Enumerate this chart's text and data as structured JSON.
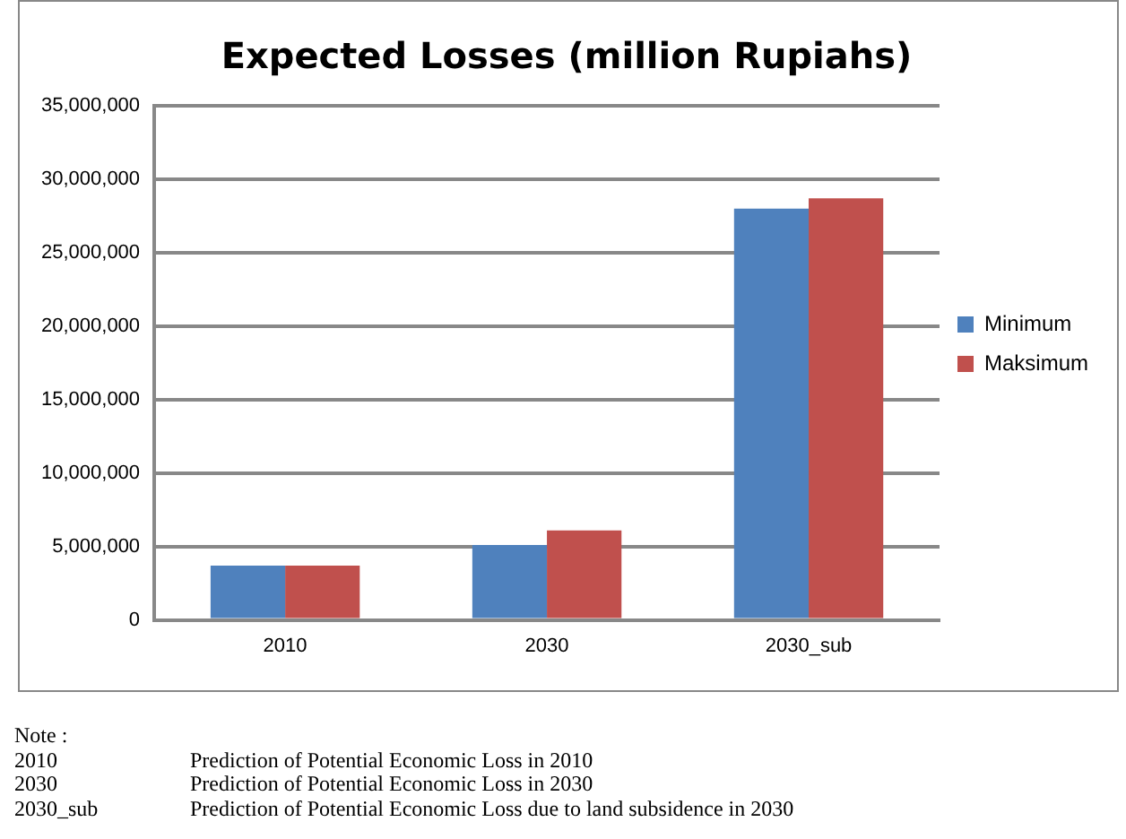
{
  "chart_data": {
    "type": "bar",
    "title": "Expected Losses (million Rupiahs)",
    "categories": [
      "2010",
      "2030",
      "2030_sub"
    ],
    "series": [
      {
        "name": "Minimum",
        "color": "#4f81bd",
        "values": [
          3700000,
          5100000,
          28000000
        ]
      },
      {
        "name": "Maksimum",
        "color": "#c0504d",
        "values": [
          3700000,
          6100000,
          28700000
        ]
      }
    ],
    "ylim": [
      0,
      35000000
    ],
    "yticks": [
      0,
      {
        "value": 5000000,
        "label": "5,000,000"
      },
      {
        "value": 10000000,
        "label": "10,000,000"
      },
      {
        "value": 15000000,
        "label": "15,000,000"
      },
      {
        "value": 20000000,
        "label": "20,000,000"
      },
      {
        "value": 25000000,
        "label": "25,000,000"
      },
      {
        "value": 30000000,
        "label": "30,000,000"
      },
      {
        "value": 35000000,
        "label": "35,000,000"
      }
    ],
    "grid": "y",
    "legend": "right",
    "annotations": [
      "Note :",
      "2010 Prediction of Potential Economic Loss in 2010",
      "2030 Prediction of Potential Economic Loss in 2030",
      "2030_sub Prediction of Potential Economic Loss due to land subsidence in 2030"
    ]
  }
}
